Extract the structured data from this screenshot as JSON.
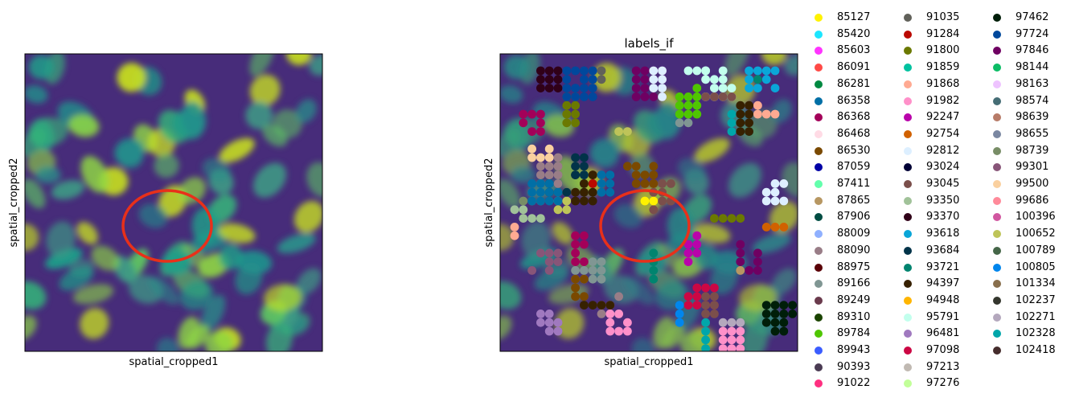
{
  "panels": [
    {
      "title": "",
      "xlabel": "spatial_cropped1",
      "ylabel": "spatial_cropped2"
    },
    {
      "title": "labels_if",
      "xlabel": "spatial_cropped1",
      "ylabel": "spatial_cropped2"
    }
  ],
  "chart_data": [
    {
      "type": "heatmap",
      "title": "",
      "xlabel": "spatial_cropped1",
      "ylabel": "spatial_cropped2",
      "colormap": "viridis",
      "xticks": [],
      "yticks": [],
      "annotations": [
        {
          "shape": "ellipse",
          "color": "#e8301a"
        }
      ]
    },
    {
      "type": "scatter",
      "title": "labels_if",
      "xlabel": "spatial_cropped1",
      "ylabel": "spatial_cropped2",
      "background": "viridis image",
      "annotations": [
        {
          "shape": "ellipse",
          "color": "#e8301a"
        }
      ],
      "legend_position": "outside-right",
      "legend": [
        {
          "label": "85127",
          "color": "#fff200"
        },
        {
          "label": "85420",
          "color": "#1ce6ff"
        },
        {
          "label": "85603",
          "color": "#ff34ff"
        },
        {
          "label": "86091",
          "color": "#ff4a46"
        },
        {
          "label": "86281",
          "color": "#008941"
        },
        {
          "label": "86358",
          "color": "#006fa6"
        },
        {
          "label": "86368",
          "color": "#a30059"
        },
        {
          "label": "86468",
          "color": "#ffdbe5"
        },
        {
          "label": "86530",
          "color": "#7a4900"
        },
        {
          "label": "87059",
          "color": "#0000a6"
        },
        {
          "label": "87411",
          "color": "#63ffac"
        },
        {
          "label": "87865",
          "color": "#b79762"
        },
        {
          "label": "87906",
          "color": "#004d43"
        },
        {
          "label": "88009",
          "color": "#8fb0ff"
        },
        {
          "label": "88090",
          "color": "#997d87"
        },
        {
          "label": "88975",
          "color": "#5a0007"
        },
        {
          "label": "89166",
          "color": "#809693"
        },
        {
          "label": "89249",
          "color": "#6a3a4c"
        },
        {
          "label": "89310",
          "color": "#1b4400"
        },
        {
          "label": "89784",
          "color": "#4fc601"
        },
        {
          "label": "89943",
          "color": "#3b5dff"
        },
        {
          "label": "90393",
          "color": "#4a3b53"
        },
        {
          "label": "91022",
          "color": "#ff2f80"
        },
        {
          "label": "91035",
          "color": "#61615a"
        },
        {
          "label": "91284",
          "color": "#ba0900"
        },
        {
          "label": "91800",
          "color": "#6b7900"
        },
        {
          "label": "91859",
          "color": "#00c2a0"
        },
        {
          "label": "91868",
          "color": "#ffaa92"
        },
        {
          "label": "91982",
          "color": "#ff90c9"
        },
        {
          "label": "92247",
          "color": "#b903aa"
        },
        {
          "label": "92754",
          "color": "#d16100"
        },
        {
          "label": "92812",
          "color": "#ddefff"
        },
        {
          "label": "93024",
          "color": "#000035"
        },
        {
          "label": "93045",
          "color": "#7b4f4b"
        },
        {
          "label": "93350",
          "color": "#a1c299"
        },
        {
          "label": "93370",
          "color": "#300018"
        },
        {
          "label": "93618",
          "color": "#0aa6d8"
        },
        {
          "label": "93684",
          "color": "#013349"
        },
        {
          "label": "93721",
          "color": "#00846f"
        },
        {
          "label": "94397",
          "color": "#372101"
        },
        {
          "label": "94948",
          "color": "#ffb500"
        },
        {
          "label": "95791",
          "color": "#c2ffed"
        },
        {
          "label": "96481",
          "color": "#a079bf"
        },
        {
          "label": "97098",
          "color": "#cc0744"
        },
        {
          "label": "97213",
          "color": "#c0b9b2"
        },
        {
          "label": "97276",
          "color": "#c2ff99"
        },
        {
          "label": "97462",
          "color": "#001e09"
        },
        {
          "label": "97724",
          "color": "#00489c"
        },
        {
          "label": "97846",
          "color": "#6f0062"
        },
        {
          "label": "98144",
          "color": "#0cbd66"
        },
        {
          "label": "98163",
          "color": "#eec3ff"
        },
        {
          "label": "98574",
          "color": "#456d75"
        },
        {
          "label": "98639",
          "color": "#b77b68"
        },
        {
          "label": "98655",
          "color": "#7a87a1"
        },
        {
          "label": "98739",
          "color": "#788d66"
        },
        {
          "label": "99301",
          "color": "#885578"
        },
        {
          "label": "99500",
          "color": "#fad09f"
        },
        {
          "label": "99686",
          "color": "#ff8a9a"
        },
        {
          "label": "100396",
          "color": "#d157a0"
        },
        {
          "label": "100652",
          "color": "#bec459"
        },
        {
          "label": "100789",
          "color": "#456648"
        },
        {
          "label": "100805",
          "color": "#0086ed"
        },
        {
          "label": "101334",
          "color": "#886f4c"
        },
        {
          "label": "102237",
          "color": "#34362d"
        },
        {
          "label": "102271",
          "color": "#b4a8bd"
        },
        {
          "label": "102328",
          "color": "#00a6aa"
        },
        {
          "label": "102418",
          "color": "#452c2c"
        }
      ]
    }
  ]
}
